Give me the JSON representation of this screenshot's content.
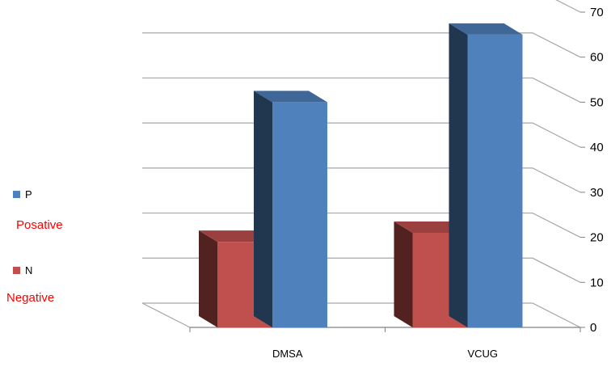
{
  "chart_data": {
    "type": "bar",
    "categories": [
      "DMSA",
      "VCUG"
    ],
    "series": [
      {
        "name": "N",
        "values": [
          19,
          21
        ],
        "color": "#c0504d"
      },
      {
        "name": "P",
        "values": [
          50,
          65
        ],
        "color": "#4f81bd"
      }
    ],
    "ylim": [
      0,
      70
    ],
    "yticks": [
      0,
      10,
      20,
      30,
      40,
      50,
      60,
      70
    ],
    "grid": true,
    "legend_position": "left",
    "legend_notes": [
      "Posative",
      "Negative"
    ]
  }
}
